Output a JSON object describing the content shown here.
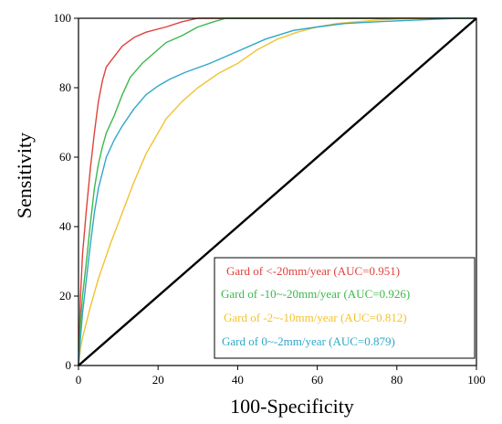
{
  "chart_data": {
    "type": "line",
    "title": "",
    "xlabel": "100-Specificity",
    "ylabel": "Sensitivity",
    "xlim": [
      0,
      100
    ],
    "ylim": [
      0,
      100
    ],
    "x_ticks": [
      "0",
      "20",
      "40",
      "60",
      "80",
      "100"
    ],
    "y_ticks": [
      "0",
      "20",
      "40",
      "60",
      "80",
      "100"
    ],
    "grid": false,
    "legend_position": "bottom-right",
    "series": [
      {
        "name": "Gard of <-20mm/year (AUC=0.951)",
        "color": "#e0413a",
        "points": [
          [
            0,
            0
          ],
          [
            0.5,
            20
          ],
          [
            1,
            32
          ],
          [
            2,
            45
          ],
          [
            3,
            57
          ],
          [
            4,
            67
          ],
          [
            5,
            76
          ],
          [
            6,
            82
          ],
          [
            7,
            86
          ],
          [
            9,
            89
          ],
          [
            11,
            92
          ],
          [
            14,
            94.5
          ],
          [
            17,
            96
          ],
          [
            22,
            97.5
          ],
          [
            26,
            99
          ],
          [
            30,
            100
          ],
          [
            100,
            100
          ]
        ]
      },
      {
        "name": "Gard of -10~-20mm/year (AUC=0.926)",
        "color": "#3cb84a",
        "points": [
          [
            0,
            0
          ],
          [
            0.5,
            12
          ],
          [
            1,
            20
          ],
          [
            2,
            30
          ],
          [
            3,
            41
          ],
          [
            4,
            51
          ],
          [
            5,
            58
          ],
          [
            6,
            63
          ],
          [
            7,
            67
          ],
          [
            9,
            72
          ],
          [
            11,
            78
          ],
          [
            13,
            83
          ],
          [
            16,
            87
          ],
          [
            19,
            90
          ],
          [
            22,
            93
          ],
          [
            26,
            95
          ],
          [
            30,
            97.5
          ],
          [
            34,
            99
          ],
          [
            37,
            100
          ],
          [
            100,
            100
          ]
        ]
      },
      {
        "name": "Gard of -2~-10mm/year (AUC=0.812)",
        "color": "#f2c230",
        "points": [
          [
            0,
            0
          ],
          [
            0.5,
            5
          ],
          [
            1,
            8
          ],
          [
            3,
            17
          ],
          [
            5,
            25
          ],
          [
            8,
            35
          ],
          [
            11,
            44
          ],
          [
            14,
            53
          ],
          [
            17,
            61
          ],
          [
            20,
            67
          ],
          [
            22,
            71
          ],
          [
            26,
            76
          ],
          [
            30,
            80
          ],
          [
            35,
            84
          ],
          [
            40,
            87
          ],
          [
            45,
            91
          ],
          [
            50,
            94
          ],
          [
            55,
            96
          ],
          [
            60,
            97.5
          ],
          [
            65,
            98.5
          ],
          [
            75,
            99.5
          ],
          [
            85,
            100
          ],
          [
            100,
            100
          ]
        ]
      },
      {
        "name": "Gard of 0~-2mm/year (AUC=0.879)",
        "color": "#2fa7c8",
        "points": [
          [
            0,
            0
          ],
          [
            0.5,
            8
          ],
          [
            1,
            15
          ],
          [
            2,
            25
          ],
          [
            3,
            35
          ],
          [
            4,
            44
          ],
          [
            5,
            51
          ],
          [
            7,
            60
          ],
          [
            9,
            65
          ],
          [
            11,
            69
          ],
          [
            14,
            74
          ],
          [
            17,
            78
          ],
          [
            20,
            80.5
          ],
          [
            23,
            82.5
          ],
          [
            27,
            84.5
          ],
          [
            33,
            87
          ],
          [
            40,
            90.5
          ],
          [
            47,
            94
          ],
          [
            54,
            96.5
          ],
          [
            60,
            97.5
          ],
          [
            67,
            98.5
          ],
          [
            75,
            99
          ],
          [
            85,
            99.5
          ],
          [
            95,
            100
          ],
          [
            100,
            100
          ]
        ]
      },
      {
        "name": "",
        "color": "#000000",
        "points": [
          [
            0,
            0
          ],
          [
            100,
            100
          ]
        ]
      }
    ]
  }
}
